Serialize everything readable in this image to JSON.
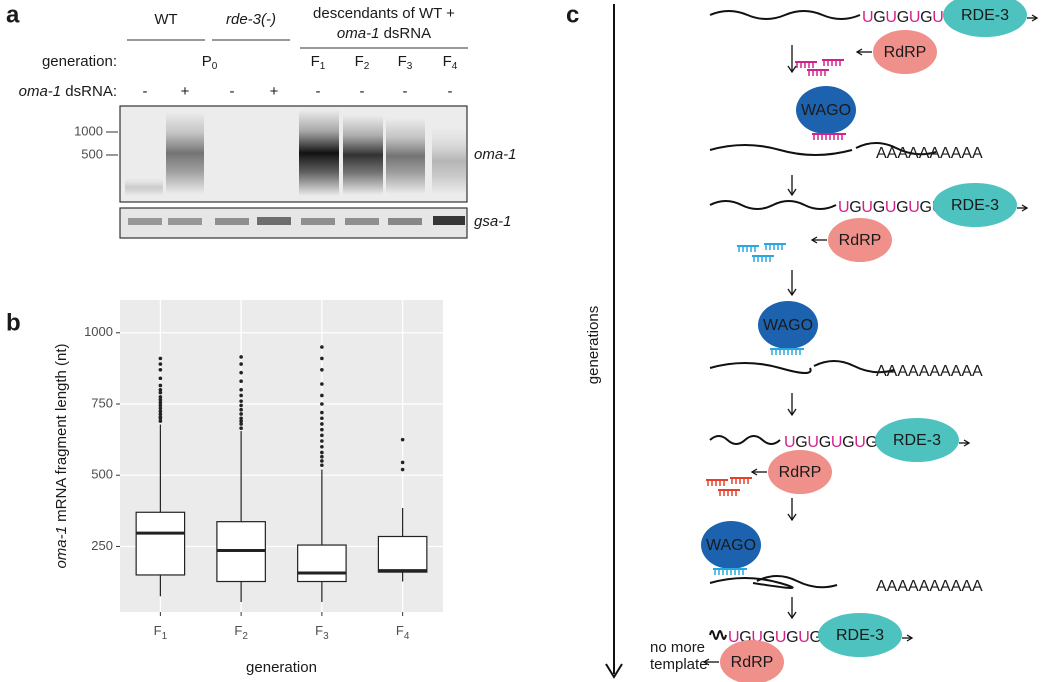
{
  "panel_a": {
    "letter": "a",
    "groups": [
      "WT",
      "rde-3(-)"
    ],
    "descendants": {
      "line1": "descendants of WT +",
      "line2_italic": "oma-1",
      "line2_rest": " dsRNA"
    },
    "generation_label": "generation:",
    "generations": [
      {
        "base": "P",
        "sub": "0"
      },
      {
        "base": "F",
        "sub": "1"
      },
      {
        "base": "F",
        "sub": "2"
      },
      {
        "base": "F",
        "sub": "3"
      },
      {
        "base": "F",
        "sub": "4"
      }
    ],
    "dsrna_label_italic": "oma-1",
    "dsrna_label_rest": " dsRNA:",
    "dsrna": [
      "-",
      "+",
      "-",
      "+",
      "-",
      "-",
      "-",
      "-"
    ],
    "markers": [
      "1000",
      "500"
    ],
    "genes": [
      "oma-1",
      "gsa-1"
    ]
  },
  "chart_data": {
    "type": "box",
    "letter": "b",
    "y_label_italic": "oma-1",
    "y_label": " mRNA fragment length (nt)",
    "x_label": "generation",
    "categories": [
      {
        "base": "F",
        "sub": "1"
      },
      {
        "base": "F",
        "sub": "2"
      },
      {
        "base": "F",
        "sub": "3"
      },
      {
        "base": "F",
        "sub": "4"
      }
    ],
    "ylim": [
      20,
      1115
    ],
    "yticks": [
      250,
      500,
      750,
      1000
    ],
    "grid": true,
    "boxes": [
      {
        "low": 75,
        "q1": 150,
        "median": 297,
        "q3": 370,
        "high": 678,
        "outliers": [
          690,
          700,
          705,
          715,
          725,
          735,
          745,
          755,
          765,
          775,
          790,
          800,
          815,
          840,
          870,
          890,
          910
        ]
      },
      {
        "low": 55,
        "q1": 127,
        "median": 236,
        "q3": 337,
        "high": 655,
        "outliers": [
          665,
          680,
          690,
          700,
          715,
          730,
          745,
          760,
          780,
          800,
          830,
          860,
          890,
          915
        ]
      },
      {
        "low": 55,
        "q1": 127,
        "median": 157,
        "q3": 255,
        "high": 520,
        "outliers": [
          535,
          550,
          565,
          580,
          600,
          620,
          640,
          660,
          680,
          700,
          720,
          750,
          780,
          820,
          870,
          910,
          950
        ]
      },
      {
        "low": 127,
        "q1": 160,
        "median": 165,
        "q3": 285,
        "high": 385,
        "outliers": [
          520,
          545,
          625
        ]
      }
    ]
  },
  "panel_c": {
    "letter": "c",
    "axis_label": "generations",
    "steps": [
      {
        "tail": "UGUGUGUGU",
        "rde3": "RDE-3",
        "rdrp": "RdRP"
      },
      {
        "tail": "UGUGUGUGU",
        "rde3": "RDE-3",
        "rdrp": "RdRP"
      },
      {
        "tail": "UGUGUGUGU",
        "rde3": "RDE-3",
        "rdrp": "RdRP"
      },
      {
        "tail": "UGUGUGUGU",
        "rde3": "RDE-3",
        "rdrp": "RdRP"
      }
    ],
    "wago": [
      {
        "label": "WAGO",
        "polya": "AAAAAAAAAA"
      },
      {
        "label": "WAGO",
        "polya": "AAAAAAAAAA"
      },
      {
        "label": "WAGO",
        "polya": "AAAAAAAAAA"
      }
    ],
    "no_more": [
      "no more",
      "template"
    ]
  }
}
